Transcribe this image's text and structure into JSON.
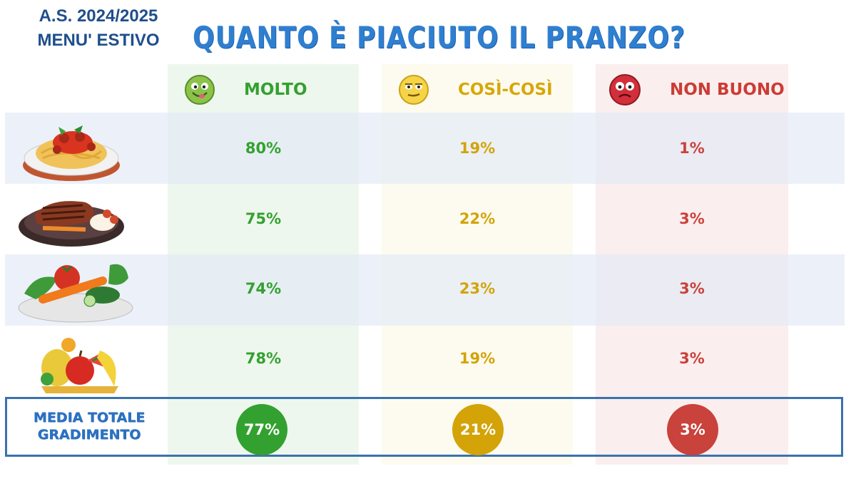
{
  "header": {
    "year_line1": "A.S. 2024/2025",
    "year_line2": "MENU' ESTIVO",
    "title": "QUANTO È PIACIUTO IL PRANZO?"
  },
  "columns": [
    {
      "label": "MOLTO",
      "face": "happy-face-icon",
      "color": "#33a12f"
    },
    {
      "label": "COSÌ-COSÌ",
      "face": "neutral-face-icon",
      "color": "#d3a308"
    },
    {
      "label": "NON BUONO",
      "face": "sad-face-icon",
      "color": "#c9423b"
    }
  ],
  "rows": [
    {
      "icon": "pasta-plate-icon",
      "molto": "80%",
      "cosi": "19%",
      "non": "1%"
    },
    {
      "icon": "meat-plate-icon",
      "molto": "75%",
      "cosi": "22%",
      "non": "3%"
    },
    {
      "icon": "vegetables-plate-icon",
      "molto": "74%",
      "cosi": "23%",
      "non": "3%"
    },
    {
      "icon": "fruit-plate-icon",
      "molto": "78%",
      "cosi": "19%",
      "non": "3%"
    }
  ],
  "summary": {
    "label_line1": "MEDIA TOTALE",
    "label_line2": "GRADIMENTO",
    "molto": "77%",
    "cosi": "21%",
    "non": "3%"
  },
  "chart_data": {
    "type": "table",
    "title": "QUANTO È PIACIUTO IL PRANZO?",
    "columns": [
      "MOLTO",
      "COSÌ-COSÌ",
      "NON BUONO"
    ],
    "rows": [
      {
        "values": [
          80,
          19,
          1
        ]
      },
      {
        "values": [
          75,
          22,
          3
        ]
      },
      {
        "values": [
          74,
          23,
          3
        ]
      },
      {
        "values": [
          78,
          19,
          3
        ]
      }
    ],
    "summary": {
      "label": "MEDIA TOTALE GRADIMENTO",
      "values": [
        77,
        21,
        3
      ]
    },
    "unit": "%"
  }
}
